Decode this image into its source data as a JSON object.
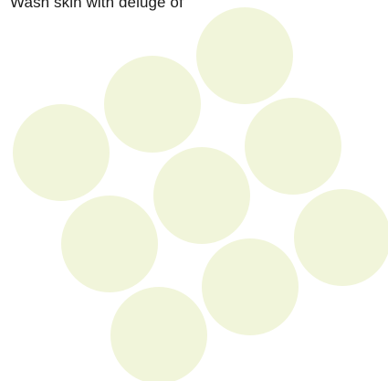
{
  "heading_text": "Wash skin with deluge of",
  "circle_color": "#f1f5da",
  "circle_count": 9
}
